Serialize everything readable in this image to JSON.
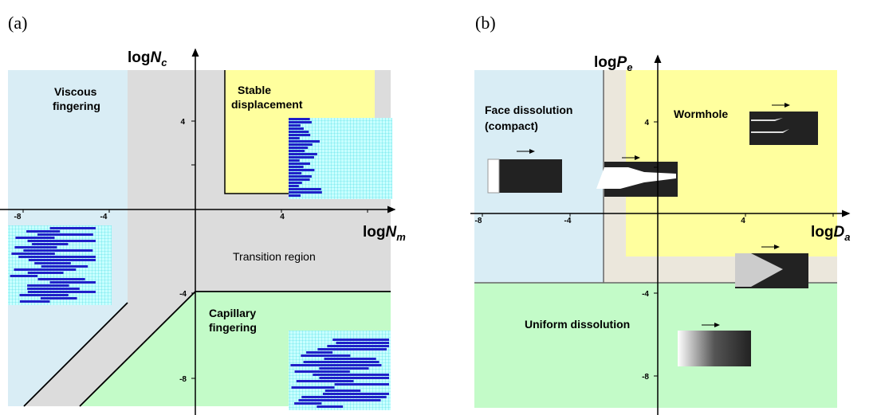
{
  "panels": [
    {
      "label": "(a)",
      "y_axis": {
        "prefix": "log",
        "var": "N",
        "sub": "c"
      },
      "x_axis": {
        "prefix": "log",
        "var": "N",
        "sub": "m"
      },
      "x_ticks": [
        "-8",
        "-4",
        "4"
      ],
      "y_ticks": [
        "4",
        "-4",
        "-8"
      ],
      "regions": [
        {
          "lines": [
            "Viscous",
            "fingering"
          ]
        },
        {
          "lines": [
            "Stable",
            "displacement"
          ]
        },
        {
          "lines": [
            "Transition region"
          ]
        },
        {
          "lines": [
            "Capillary",
            "fingering"
          ]
        }
      ]
    },
    {
      "label": "(b)",
      "y_axis": {
        "prefix": "log",
        "var": "P",
        "sub": "e"
      },
      "x_axis": {
        "prefix": "log",
        "var": "D",
        "sub": "a"
      },
      "x_ticks": [
        "-8",
        "-4",
        "4"
      ],
      "y_ticks": [
        "4",
        "-4",
        "-8"
      ],
      "regions": [
        {
          "lines": [
            "Face dissolution",
            "(compact)"
          ]
        },
        {
          "lines": [
            "Wormhole"
          ]
        },
        {
          "lines": [
            "Uniform dissolution"
          ]
        }
      ]
    }
  ]
}
